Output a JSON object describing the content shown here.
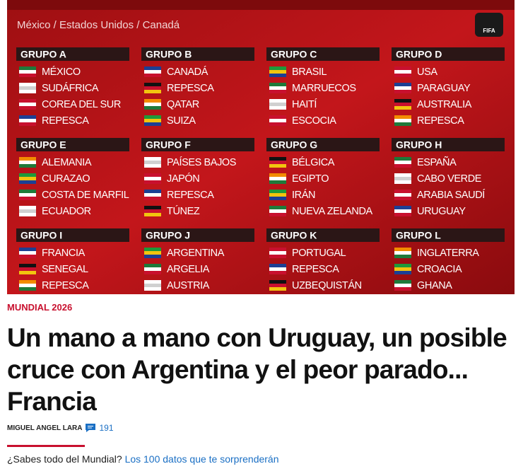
{
  "banner": {
    "subtitle": "México / Estados Unidos / Canadá",
    "logo": "FIFA",
    "groups": [
      {
        "name": "GRUPO A",
        "teams": [
          "MÉXICO",
          "SUDÁFRICA",
          "COREA DEL SUR",
          "REPESCA"
        ]
      },
      {
        "name": "GRUPO B",
        "teams": [
          "CANADÁ",
          "REPESCA",
          "QATAR",
          "SUIZA"
        ]
      },
      {
        "name": "GRUPO C",
        "teams": [
          "BRASIL",
          "MARRUECOS",
          "HAITÍ",
          "ESCOCIA"
        ]
      },
      {
        "name": "GRUPO D",
        "teams": [
          "USA",
          "PARAGUAY",
          "AUSTRALIA",
          "REPESCA"
        ]
      },
      {
        "name": "GRUPO E",
        "teams": [
          "ALEMANIA",
          "CURAZAO",
          "COSTA DE MARFIL",
          "ECUADOR"
        ]
      },
      {
        "name": "GRUPO F",
        "teams": [
          "PAÍSES BAJOS",
          "JAPÓN",
          "REPESCA",
          "TÚNEZ"
        ]
      },
      {
        "name": "GRUPO G",
        "teams": [
          "BÉLGICA",
          "EGIPTO",
          "IRÁN",
          "NUEVA ZELANDA"
        ]
      },
      {
        "name": "GRUPO H",
        "teams": [
          "ESPAÑA",
          "CABO VERDE",
          "ARABIA SAUDÍ",
          "URUGUAY"
        ]
      },
      {
        "name": "GRUPO I",
        "teams": [
          "FRANCIA",
          "SENEGAL",
          "REPESCA"
        ]
      },
      {
        "name": "GRUPO J",
        "teams": [
          "ARGENTINA",
          "ARGELIA",
          "AUSTRIA"
        ]
      },
      {
        "name": "GRUPO K",
        "teams": [
          "PORTUGAL",
          "REPESCA",
          "UZBEQUISTÁN"
        ]
      },
      {
        "name": "GRUPO L",
        "teams": [
          "INGLATERRA",
          "CROACIA",
          "GHANA"
        ]
      }
    ]
  },
  "article": {
    "section": "MUNDIAL 2026",
    "headline": "Un mano a mano con Uruguay, un posible cruce con Argentina y el peor parado... Francia",
    "author": "MIGUEL ANGEL LARA",
    "comments": 191,
    "related_question": "¿Sabes todo del Mundial?",
    "related_link": "Los 100 datos que te sorprenderán"
  }
}
